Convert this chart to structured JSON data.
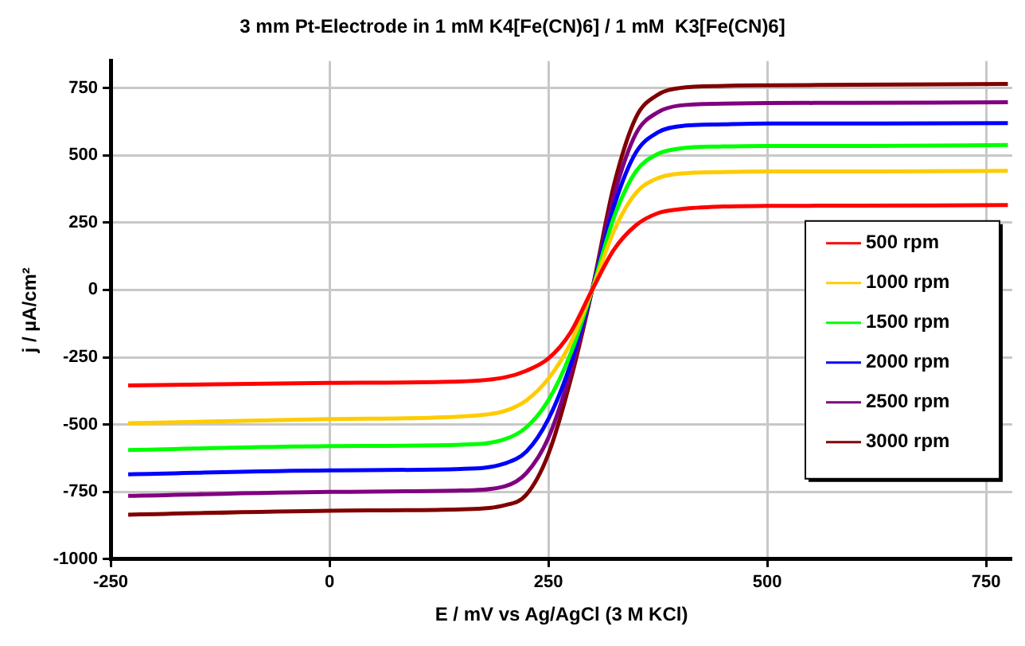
{
  "chart_data": {
    "type": "line",
    "title": "3 mm Pt-Electrode in 1 mM K4[Fe(CN)6] / 1 mM  K3[Fe(CN)6]",
    "xlabel": "E / mV vs Ag/AgCl (3 M KCl)",
    "ylabel": "j / µA/cm²",
    "x": [
      -230,
      0,
      150,
      200,
      225,
      250,
      275,
      300,
      325,
      350,
      375,
      400,
      450,
      500,
      600,
      775
    ],
    "series": [
      {
        "name": "500 rpm",
        "color": "#ff0000",
        "values": [
          -355,
          -345,
          -340,
          -325,
          -300,
          -255,
          -160,
          0,
          150,
          240,
          285,
          300,
          310,
          312,
          313,
          315
        ]
      },
      {
        "name": "1000 rpm",
        "color": "#ffcc00",
        "values": [
          -495,
          -480,
          -470,
          -450,
          -410,
          -330,
          -200,
          0,
          220,
          360,
          415,
          432,
          438,
          440,
          440,
          442
        ]
      },
      {
        "name": "1500 rpm",
        "color": "#00ff00",
        "values": [
          -595,
          -580,
          -575,
          -555,
          -510,
          -410,
          -240,
          0,
          270,
          440,
          505,
          525,
          533,
          535,
          535,
          538
        ]
      },
      {
        "name": "2000 rpm",
        "color": "#0000ff",
        "values": [
          -685,
          -670,
          -665,
          -645,
          -600,
          -480,
          -280,
          0,
          310,
          510,
          585,
          608,
          615,
          618,
          618,
          620
        ]
      },
      {
        "name": "2500 rpm",
        "color": "#800080",
        "values": [
          -765,
          -750,
          -745,
          -730,
          -680,
          -550,
          -310,
          0,
          350,
          580,
          660,
          685,
          692,
          694,
          695,
          697
        ]
      },
      {
        "name": "3000 rpm",
        "color": "#800000",
        "values": [
          -835,
          -820,
          -815,
          -800,
          -760,
          -610,
          -340,
          0,
          390,
          640,
          725,
          750,
          758,
          760,
          762,
          765
        ]
      }
    ],
    "xlim": [
      -250,
      780
    ],
    "xticks": [
      -250,
      0,
      250,
      500,
      750
    ],
    "ylim": [
      -1000,
      850
    ],
    "yticks": [
      -1000,
      -750,
      -500,
      -250,
      0,
      250,
      500,
      750
    ],
    "grid": true,
    "legend": "right",
    "marker": "none",
    "line_style": "solid"
  }
}
